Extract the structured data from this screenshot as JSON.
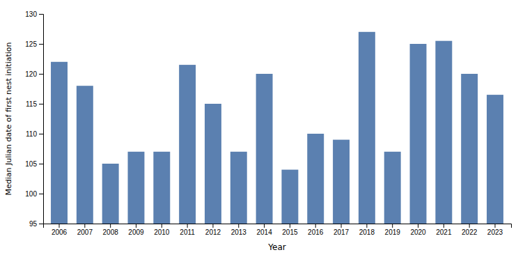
{
  "chart_data": {
    "type": "bar",
    "categories": [
      "2006",
      "2007",
      "2008",
      "2009",
      "2010",
      "2011",
      "2012",
      "2013",
      "2014",
      "2015",
      "2016",
      "2017",
      "2018",
      "2019",
      "2020",
      "2021",
      "2022",
      "2023"
    ],
    "values": [
      122,
      118,
      105,
      107,
      107,
      121.5,
      115,
      107,
      120,
      104,
      110,
      109,
      127,
      107,
      125,
      125.5,
      120,
      116.5
    ],
    "color": "#5b80b0",
    "xlabel": "Year",
    "ylabel": "Median Julian date of first nest initiation",
    "ylim": [
      95,
      130
    ],
    "yticks": [
      95,
      100,
      105,
      110,
      115,
      120,
      125,
      130
    ],
    "grid": false
  }
}
